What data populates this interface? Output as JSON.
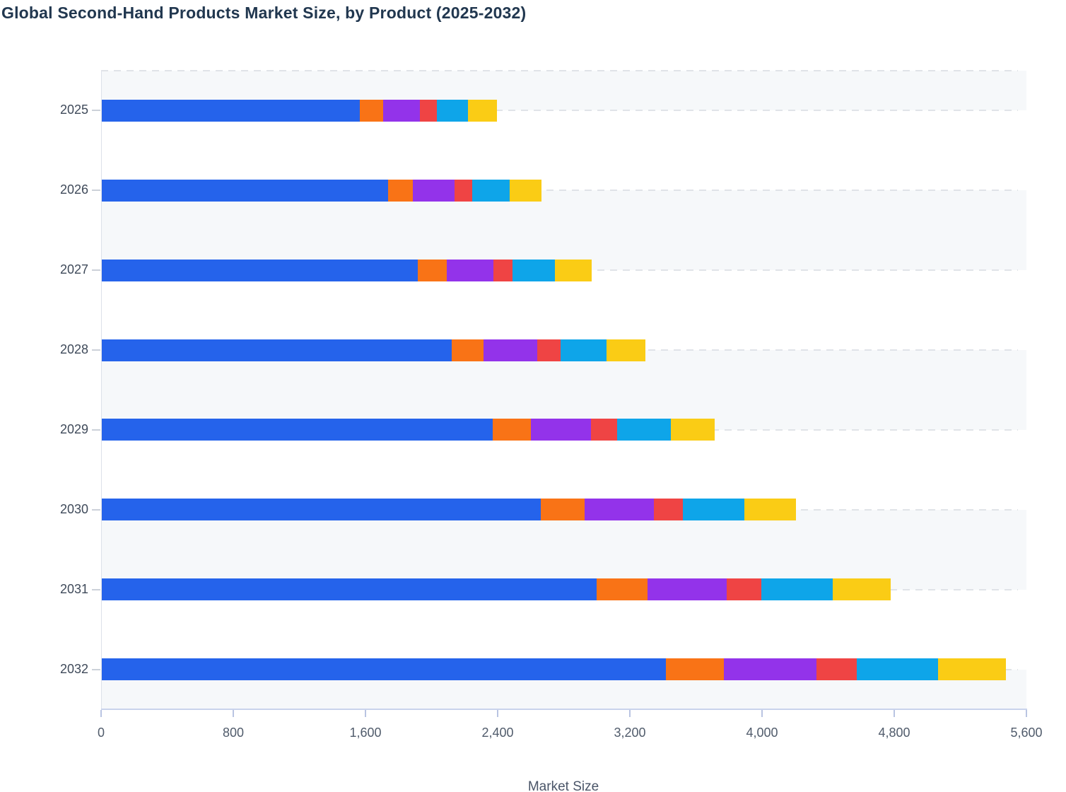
{
  "title": "Global Second-Hand Products Market Size, by Product (2025-2032)",
  "chart_data": {
    "type": "bar",
    "orientation": "horizontal",
    "stacked": true,
    "title": "Global Second-Hand Products Market Size, by Product (2025-2032)",
    "categories": [
      "2025",
      "2026",
      "2027",
      "2028",
      "2029",
      "2030",
      "2031",
      "2032"
    ],
    "series": [
      {
        "name": "segment-blue",
        "color": "#2563eb",
        "values": [
          1565,
          1735,
          1915,
          2120,
          2370,
          2660,
          3000,
          3420
        ]
      },
      {
        "name": "segment-orange",
        "color": "#f97316",
        "values": [
          140,
          150,
          175,
          195,
          230,
          265,
          305,
          350
        ]
      },
      {
        "name": "segment-purple",
        "color": "#9333ea",
        "values": [
          225,
          255,
          285,
          325,
          365,
          420,
          480,
          560
        ]
      },
      {
        "name": "segment-red",
        "color": "#ef4444",
        "values": [
          100,
          105,
          115,
          140,
          160,
          175,
          210,
          245
        ]
      },
      {
        "name": "segment-cyan",
        "color": "#0ea5e9",
        "values": [
          190,
          230,
          255,
          280,
          325,
          375,
          435,
          490
        ]
      },
      {
        "name": "segment-yellow",
        "color": "#facc15",
        "values": [
          175,
          190,
          225,
          235,
          265,
          310,
          350,
          410
        ]
      }
    ],
    "totals": [
      2395,
      2665,
      2970,
      3295,
      3715,
      4205,
      4780,
      5475
    ],
    "xlabel": "Market Size",
    "x_ticks": [
      "0",
      "800",
      "1,600",
      "2,400",
      "3,200",
      "4,000",
      "4,800",
      "5,600"
    ],
    "xlim": [
      0,
      5600
    ],
    "x_tick_interval": 800,
    "grid": "dashed horizontal lines, alternating light band fill",
    "legend": "none"
  },
  "colors": {
    "title_text": "#21374f",
    "axis_tick_label": "#505b6b",
    "category_label": "#3f4a5a",
    "band_light": "#f6f8fa",
    "band_white": "#ffffff",
    "bottom_axis": "#c9d3ec",
    "left_axis": "#dde1ea",
    "grid_dash": "#e0e3e8"
  }
}
